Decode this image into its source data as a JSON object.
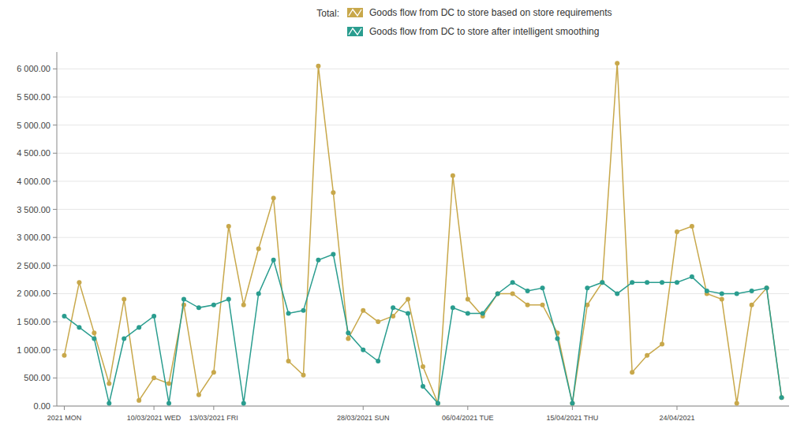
{
  "chart_data": {
    "type": "line",
    "annotations": [
      "Total:"
    ],
    "categories": [
      "2021 MON",
      null,
      null,
      null,
      null,
      null,
      "10/03/2021 WED",
      null,
      null,
      null,
      "13/03/2021 FRI",
      null,
      null,
      null,
      null,
      null,
      null,
      null,
      null,
      null,
      "28/03/2021 SUN",
      null,
      null,
      null,
      null,
      null,
      null,
      "06/04/2021 TUE",
      null,
      null,
      null,
      null,
      null,
      null,
      "15/04/2021 THU",
      null,
      null,
      null,
      null,
      null,
      null,
      "24/04/2021",
      null,
      null,
      null,
      null,
      null,
      null,
      null
    ],
    "series": [
      {
        "name": "Goods flow from DC to store based on store requirements",
        "color": "#c8a84b",
        "marker": "circle",
        "line_style": "solid",
        "values": [
          900,
          2200,
          1300,
          400,
          1900,
          100,
          500,
          400,
          1800,
          200,
          600,
          3200,
          1800,
          2800,
          3700,
          800,
          550,
          6050,
          3800,
          1200,
          1700,
          1500,
          1600,
          1900,
          700,
          50,
          4100,
          1900,
          1600,
          2000,
          2000,
          1800,
          1800,
          1300,
          50,
          1800,
          2200,
          6100,
          600,
          900,
          1100,
          3100,
          3200,
          2000,
          1900,
          50,
          1800,
          2100,
          150
        ]
      },
      {
        "name": "Goods flow from DC to store after intelligent smoothing",
        "color": "#2a9d8f",
        "marker": "circle",
        "line_style": "solid",
        "values": [
          1600,
          1400,
          1200,
          50,
          1200,
          1400,
          1600,
          50,
          1900,
          1750,
          1800,
          1900,
          50,
          2000,
          2600,
          1650,
          1700,
          2600,
          2700,
          1300,
          1000,
          800,
          1750,
          1650,
          350,
          50,
          1750,
          1650,
          1650,
          2000,
          2200,
          2050,
          2100,
          1200,
          50,
          2100,
          2200,
          2000,
          2200,
          2200,
          2200,
          2200,
          2300,
          2050,
          2000,
          2000,
          2050,
          2100,
          150
        ]
      }
    ],
    "ylim": [
      0,
      6300
    ],
    "yticks": [
      {
        "value": 0,
        "label": "0.00"
      },
      {
        "value": 500,
        "label": "500.00"
      },
      {
        "value": 1000,
        "label": "1 000.00"
      },
      {
        "value": 1500,
        "label": "1 500.00"
      },
      {
        "value": 2000,
        "label": "2 000.00"
      },
      {
        "value": 2500,
        "label": "2 500.00"
      },
      {
        "value": 3000,
        "label": "3 000.00"
      },
      {
        "value": 3500,
        "label": "3 500.00"
      },
      {
        "value": 4000,
        "label": "4 000.00"
      },
      {
        "value": 4500,
        "label": "4 500.00"
      },
      {
        "value": 5000,
        "label": "5 000.00"
      },
      {
        "value": 5500,
        "label": "5 500.00"
      },
      {
        "value": 6000,
        "label": "6 000.00"
      }
    ],
    "grid": true,
    "legend": "top"
  }
}
